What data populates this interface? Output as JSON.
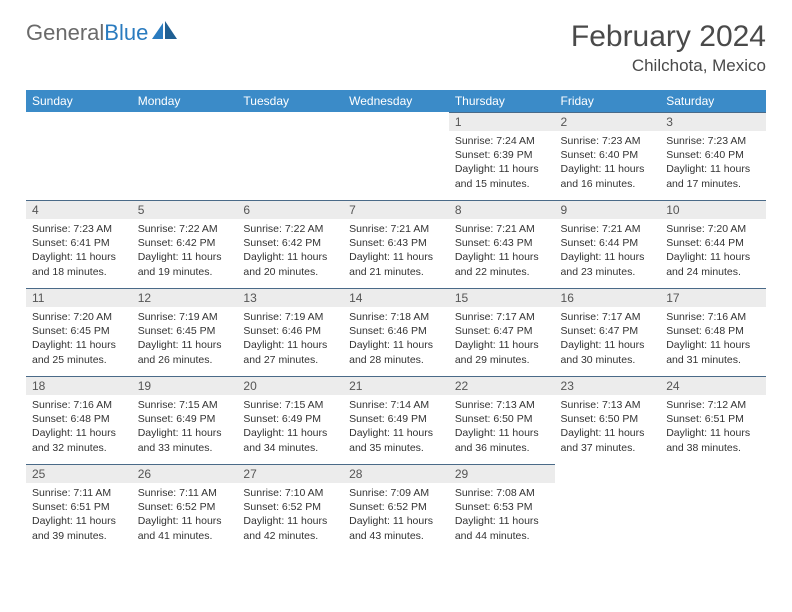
{
  "logo": {
    "word1": "General",
    "word2": "Blue"
  },
  "title": "February 2024",
  "location": "Chilchota, Mexico",
  "header_bg": "#3b8bc8",
  "daynum_bg": "#ececec",
  "day_border": "#4a6a88",
  "weekdays": [
    "Sunday",
    "Monday",
    "Tuesday",
    "Wednesday",
    "Thursday",
    "Friday",
    "Saturday"
  ],
  "weeks": [
    [
      null,
      null,
      null,
      null,
      {
        "n": "1",
        "sunrise": "7:24 AM",
        "sunset": "6:39 PM",
        "dl1": "Daylight: 11 hours",
        "dl2": "and 15 minutes."
      },
      {
        "n": "2",
        "sunrise": "7:23 AM",
        "sunset": "6:40 PM",
        "dl1": "Daylight: 11 hours",
        "dl2": "and 16 minutes."
      },
      {
        "n": "3",
        "sunrise": "7:23 AM",
        "sunset": "6:40 PM",
        "dl1": "Daylight: 11 hours",
        "dl2": "and 17 minutes."
      }
    ],
    [
      {
        "n": "4",
        "sunrise": "7:23 AM",
        "sunset": "6:41 PM",
        "dl1": "Daylight: 11 hours",
        "dl2": "and 18 minutes."
      },
      {
        "n": "5",
        "sunrise": "7:22 AM",
        "sunset": "6:42 PM",
        "dl1": "Daylight: 11 hours",
        "dl2": "and 19 minutes."
      },
      {
        "n": "6",
        "sunrise": "7:22 AM",
        "sunset": "6:42 PM",
        "dl1": "Daylight: 11 hours",
        "dl2": "and 20 minutes."
      },
      {
        "n": "7",
        "sunrise": "7:21 AM",
        "sunset": "6:43 PM",
        "dl1": "Daylight: 11 hours",
        "dl2": "and 21 minutes."
      },
      {
        "n": "8",
        "sunrise": "7:21 AM",
        "sunset": "6:43 PM",
        "dl1": "Daylight: 11 hours",
        "dl2": "and 22 minutes."
      },
      {
        "n": "9",
        "sunrise": "7:21 AM",
        "sunset": "6:44 PM",
        "dl1": "Daylight: 11 hours",
        "dl2": "and 23 minutes."
      },
      {
        "n": "10",
        "sunrise": "7:20 AM",
        "sunset": "6:44 PM",
        "dl1": "Daylight: 11 hours",
        "dl2": "and 24 minutes."
      }
    ],
    [
      {
        "n": "11",
        "sunrise": "7:20 AM",
        "sunset": "6:45 PM",
        "dl1": "Daylight: 11 hours",
        "dl2": "and 25 minutes."
      },
      {
        "n": "12",
        "sunrise": "7:19 AM",
        "sunset": "6:45 PM",
        "dl1": "Daylight: 11 hours",
        "dl2": "and 26 minutes."
      },
      {
        "n": "13",
        "sunrise": "7:19 AM",
        "sunset": "6:46 PM",
        "dl1": "Daylight: 11 hours",
        "dl2": "and 27 minutes."
      },
      {
        "n": "14",
        "sunrise": "7:18 AM",
        "sunset": "6:46 PM",
        "dl1": "Daylight: 11 hours",
        "dl2": "and 28 minutes."
      },
      {
        "n": "15",
        "sunrise": "7:17 AM",
        "sunset": "6:47 PM",
        "dl1": "Daylight: 11 hours",
        "dl2": "and 29 minutes."
      },
      {
        "n": "16",
        "sunrise": "7:17 AM",
        "sunset": "6:47 PM",
        "dl1": "Daylight: 11 hours",
        "dl2": "and 30 minutes."
      },
      {
        "n": "17",
        "sunrise": "7:16 AM",
        "sunset": "6:48 PM",
        "dl1": "Daylight: 11 hours",
        "dl2": "and 31 minutes."
      }
    ],
    [
      {
        "n": "18",
        "sunrise": "7:16 AM",
        "sunset": "6:48 PM",
        "dl1": "Daylight: 11 hours",
        "dl2": "and 32 minutes."
      },
      {
        "n": "19",
        "sunrise": "7:15 AM",
        "sunset": "6:49 PM",
        "dl1": "Daylight: 11 hours",
        "dl2": "and 33 minutes."
      },
      {
        "n": "20",
        "sunrise": "7:15 AM",
        "sunset": "6:49 PM",
        "dl1": "Daylight: 11 hours",
        "dl2": "and 34 minutes."
      },
      {
        "n": "21",
        "sunrise": "7:14 AM",
        "sunset": "6:49 PM",
        "dl1": "Daylight: 11 hours",
        "dl2": "and 35 minutes."
      },
      {
        "n": "22",
        "sunrise": "7:13 AM",
        "sunset": "6:50 PM",
        "dl1": "Daylight: 11 hours",
        "dl2": "and 36 minutes."
      },
      {
        "n": "23",
        "sunrise": "7:13 AM",
        "sunset": "6:50 PM",
        "dl1": "Daylight: 11 hours",
        "dl2": "and 37 minutes."
      },
      {
        "n": "24",
        "sunrise": "7:12 AM",
        "sunset": "6:51 PM",
        "dl1": "Daylight: 11 hours",
        "dl2": "and 38 minutes."
      }
    ],
    [
      {
        "n": "25",
        "sunrise": "7:11 AM",
        "sunset": "6:51 PM",
        "dl1": "Daylight: 11 hours",
        "dl2": "and 39 minutes."
      },
      {
        "n": "26",
        "sunrise": "7:11 AM",
        "sunset": "6:52 PM",
        "dl1": "Daylight: 11 hours",
        "dl2": "and 41 minutes."
      },
      {
        "n": "27",
        "sunrise": "7:10 AM",
        "sunset": "6:52 PM",
        "dl1": "Daylight: 11 hours",
        "dl2": "and 42 minutes."
      },
      {
        "n": "28",
        "sunrise": "7:09 AM",
        "sunset": "6:52 PM",
        "dl1": "Daylight: 11 hours",
        "dl2": "and 43 minutes."
      },
      {
        "n": "29",
        "sunrise": "7:08 AM",
        "sunset": "6:53 PM",
        "dl1": "Daylight: 11 hours",
        "dl2": "and 44 minutes."
      },
      null,
      null
    ]
  ],
  "labels": {
    "sunrise": "Sunrise: ",
    "sunset": "Sunset: "
  }
}
